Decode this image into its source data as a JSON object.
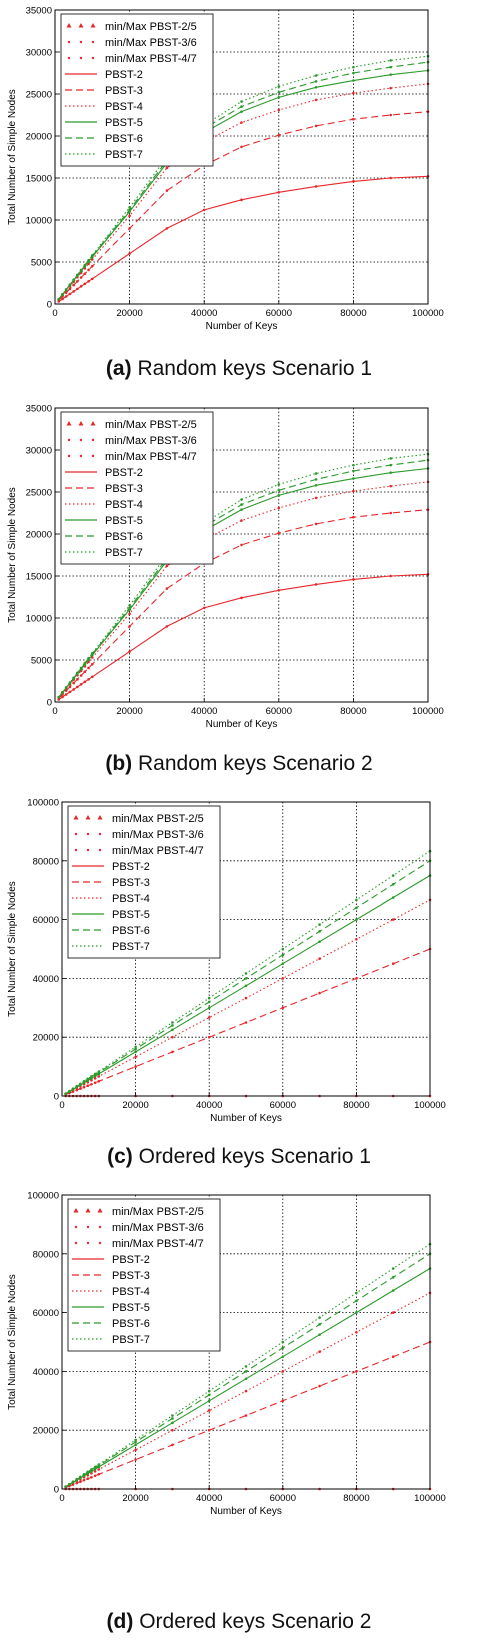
{
  "colors": {
    "pbst_low": "#e8262a",
    "pbst_high": "#2a9a2a",
    "grid": "#000000"
  },
  "chart_data": [
    {
      "type": "line",
      "caption_letter": "(a)",
      "caption_text": "Random keys Scenario 1",
      "xlabel": "Number of Keys",
      "ylabel": "Total Number of Simple Nodes",
      "xlim": [
        0,
        100000
      ],
      "ylim": [
        0,
        35000
      ],
      "xticks": [
        0,
        20000,
        40000,
        60000,
        80000,
        100000
      ],
      "yticks": [
        0,
        5000,
        10000,
        15000,
        20000,
        25000,
        30000,
        35000
      ],
      "grid": true,
      "legend_position": "top-left",
      "x": [
        1000,
        2000,
        3000,
        4000,
        5000,
        6000,
        7000,
        8000,
        9000,
        10000,
        20000,
        30000,
        40000,
        50000,
        60000,
        70000,
        80000,
        90000,
        100000
      ],
      "markers": [
        {
          "name": "min/Max PBST-2/5",
          "shape": "triangle",
          "color": "red"
        },
        {
          "name": "min/Max PBST-3/6",
          "shape": "dot",
          "color": "red"
        },
        {
          "name": "min/Max PBST-4/7",
          "shape": "dot",
          "color": "red"
        }
      ],
      "series": [
        {
          "name": "PBST-2",
          "color": "red",
          "dash": "solid",
          "values": [
            300,
            600,
            900,
            1200,
            1500,
            1800,
            2100,
            2400,
            2700,
            3000,
            6000,
            9000,
            11200,
            12400,
            13300,
            14000,
            14600,
            15000,
            15200
          ]
        },
        {
          "name": "PBST-3",
          "color": "red",
          "dash": "dashed",
          "values": [
            450,
            900,
            1350,
            1800,
            2250,
            2700,
            3150,
            3600,
            4050,
            4500,
            9000,
            13500,
            16500,
            18700,
            20100,
            21200,
            22000,
            22500,
            22900
          ]
        },
        {
          "name": "PBST-4",
          "color": "red",
          "dash": "dotted",
          "values": [
            530,
            1060,
            1590,
            2120,
            2650,
            3180,
            3710,
            4240,
            4770,
            5300,
            10500,
            16200,
            19300,
            21600,
            23100,
            24300,
            25100,
            25700,
            26200
          ]
        },
        {
          "name": "PBST-5",
          "color": "green",
          "dash": "solid",
          "values": [
            560,
            1120,
            1680,
            2240,
            2800,
            3360,
            3920,
            4480,
            5040,
            5600,
            11000,
            16800,
            20400,
            22900,
            24600,
            25800,
            26600,
            27300,
            27800
          ]
        },
        {
          "name": "PBST-6",
          "color": "green",
          "dash": "dashed",
          "values": [
            570,
            1140,
            1710,
            2280,
            2850,
            3420,
            3990,
            4560,
            5130,
            5700,
            11200,
            17100,
            20900,
            23500,
            25200,
            26500,
            27500,
            28200,
            28800
          ]
        },
        {
          "name": "PBST-7",
          "color": "green",
          "dash": "dotted",
          "values": [
            580,
            1160,
            1740,
            2320,
            2900,
            3480,
            4060,
            4640,
            5220,
            5800,
            11500,
            17500,
            21300,
            24100,
            25900,
            27200,
            28200,
            29000,
            29500
          ]
        }
      ]
    },
    {
      "type": "line",
      "caption_letter": "(b)",
      "caption_text": "Random keys Scenario 2",
      "xlabel": "Number of Keys",
      "ylabel": "Total Number of Simple Nodes",
      "xlim": [
        0,
        100000
      ],
      "ylim": [
        0,
        35000
      ],
      "xticks": [
        0,
        20000,
        40000,
        60000,
        80000,
        100000
      ],
      "yticks": [
        0,
        5000,
        10000,
        15000,
        20000,
        25000,
        30000,
        35000
      ],
      "grid": true,
      "legend_position": "top-left",
      "x": [
        1000,
        2000,
        3000,
        4000,
        5000,
        6000,
        7000,
        8000,
        9000,
        10000,
        20000,
        30000,
        40000,
        50000,
        60000,
        70000,
        80000,
        90000,
        100000
      ],
      "markers": [
        {
          "name": "min/Max PBST-2/5",
          "shape": "triangle",
          "color": "red"
        },
        {
          "name": "min/Max PBST-3/6",
          "shape": "dot",
          "color": "red"
        },
        {
          "name": "min/Max PBST-4/7",
          "shape": "dot",
          "color": "red"
        }
      ],
      "series": [
        {
          "name": "PBST-2",
          "color": "red",
          "dash": "solid",
          "values": [
            300,
            600,
            900,
            1200,
            1500,
            1800,
            2100,
            2400,
            2700,
            3000,
            6000,
            9000,
            11200,
            12400,
            13300,
            14000,
            14600,
            15000,
            15200
          ]
        },
        {
          "name": "PBST-3",
          "color": "red",
          "dash": "dashed",
          "values": [
            450,
            900,
            1350,
            1800,
            2250,
            2700,
            3150,
            3600,
            4050,
            4500,
            9000,
            13500,
            16500,
            18700,
            20100,
            21200,
            22000,
            22500,
            22900
          ]
        },
        {
          "name": "PBST-4",
          "color": "red",
          "dash": "dotted",
          "values": [
            530,
            1060,
            1590,
            2120,
            2650,
            3180,
            3710,
            4240,
            4770,
            5300,
            10500,
            16200,
            19300,
            21600,
            23100,
            24300,
            25100,
            25700,
            26200
          ]
        },
        {
          "name": "PBST-5",
          "color": "green",
          "dash": "solid",
          "values": [
            560,
            1120,
            1680,
            2240,
            2800,
            3360,
            3920,
            4480,
            5040,
            5600,
            11000,
            16800,
            20400,
            22900,
            24600,
            25800,
            26600,
            27300,
            27800
          ]
        },
        {
          "name": "PBST-6",
          "color": "green",
          "dash": "dashed",
          "values": [
            570,
            1140,
            1710,
            2280,
            2850,
            3420,
            3990,
            4560,
            5130,
            5700,
            11200,
            17100,
            20900,
            23500,
            25200,
            26500,
            27500,
            28200,
            28800
          ]
        },
        {
          "name": "PBST-7",
          "color": "green",
          "dash": "dotted",
          "values": [
            580,
            1160,
            1740,
            2320,
            2900,
            3480,
            4060,
            4640,
            5220,
            5800,
            11500,
            17500,
            21300,
            24100,
            25900,
            27200,
            28200,
            29000,
            29500
          ]
        }
      ]
    },
    {
      "type": "line",
      "caption_letter": "(c)",
      "caption_text": "Ordered keys Scenario 1",
      "xlabel": "Number of Keys",
      "ylabel": "Total Number of Simple Nodes",
      "xlim": [
        0,
        100000
      ],
      "ylim": [
        0,
        100000
      ],
      "xticks": [
        0,
        20000,
        40000,
        60000,
        80000,
        100000
      ],
      "yticks": [
        0,
        20000,
        40000,
        60000,
        80000,
        100000
      ],
      "grid": true,
      "legend_position": "top-left",
      "x": [
        1000,
        2000,
        3000,
        4000,
        5000,
        6000,
        7000,
        8000,
        9000,
        10000,
        20000,
        30000,
        40000,
        50000,
        60000,
        70000,
        80000,
        90000,
        100000
      ],
      "markers": [
        {
          "name": "min/Max PBST-2/5",
          "shape": "triangle",
          "color": "red"
        },
        {
          "name": "min/Max PBST-3/6",
          "shape": "dot",
          "color": "red"
        },
        {
          "name": "min/Max PBST-4/7",
          "shape": "dot",
          "color": "red"
        }
      ],
      "series": [
        {
          "name": "PBST-2",
          "color": "red",
          "dash": "solid",
          "values": [
            0,
            0,
            0,
            0,
            0,
            0,
            0,
            0,
            0,
            0,
            0,
            0,
            0,
            0,
            0,
            0,
            0,
            0,
            0
          ]
        },
        {
          "name": "PBST-3",
          "color": "red",
          "dash": "dashed",
          "values": [
            500,
            1000,
            1500,
            2000,
            2500,
            3000,
            3500,
            4000,
            4500,
            5000,
            10000,
            15000,
            20000,
            25000,
            30000,
            35000,
            40000,
            45000,
            50000
          ]
        },
        {
          "name": "PBST-4",
          "color": "red",
          "dash": "dotted",
          "values": [
            670,
            1340,
            2000,
            2670,
            3340,
            4000,
            4670,
            5340,
            6000,
            6670,
            13300,
            20000,
            26700,
            33300,
            40000,
            46700,
            53300,
            60000,
            66700
          ]
        },
        {
          "name": "PBST-5",
          "color": "green",
          "dash": "solid",
          "values": [
            750,
            1500,
            2250,
            3000,
            3750,
            4500,
            5250,
            6000,
            6750,
            7500,
            15000,
            22500,
            30000,
            37500,
            45000,
            52500,
            60000,
            67500,
            75000
          ]
        },
        {
          "name": "PBST-6",
          "color": "green",
          "dash": "dashed",
          "values": [
            800,
            1600,
            2400,
            3200,
            4000,
            4800,
            5600,
            6400,
            7200,
            8000,
            16000,
            24000,
            32000,
            40000,
            48000,
            56000,
            64000,
            72000,
            80000
          ]
        },
        {
          "name": "PBST-7",
          "color": "green",
          "dash": "dotted",
          "values": [
            830,
            1660,
            2500,
            3330,
            4160,
            5000,
            5830,
            6660,
            7500,
            8330,
            16700,
            25000,
            33300,
            41700,
            50000,
            58300,
            66700,
            75000,
            83300
          ]
        }
      ]
    },
    {
      "type": "line",
      "caption_letter": "(d)",
      "caption_text": "Ordered keys Scenario 2",
      "xlabel": "Number of Keys",
      "ylabel": "Total Number of Simple Nodes",
      "xlim": [
        0,
        100000
      ],
      "ylim": [
        0,
        100000
      ],
      "xticks": [
        0,
        20000,
        40000,
        60000,
        80000,
        100000
      ],
      "yticks": [
        0,
        20000,
        40000,
        60000,
        80000,
        100000
      ],
      "grid": true,
      "legend_position": "top-left",
      "x": [
        1000,
        2000,
        3000,
        4000,
        5000,
        6000,
        7000,
        8000,
        9000,
        10000,
        20000,
        30000,
        40000,
        50000,
        60000,
        70000,
        80000,
        90000,
        100000
      ],
      "markers": [
        {
          "name": "min/Max PBST-2/5",
          "shape": "triangle",
          "color": "red"
        },
        {
          "name": "min/Max PBST-3/6",
          "shape": "dot",
          "color": "red"
        },
        {
          "name": "min/Max PBST-4/7",
          "shape": "dot",
          "color": "red"
        }
      ],
      "series": [
        {
          "name": "PBST-2",
          "color": "red",
          "dash": "solid",
          "values": [
            0,
            0,
            0,
            0,
            0,
            0,
            0,
            0,
            0,
            0,
            0,
            0,
            0,
            0,
            0,
            0,
            0,
            0,
            0
          ]
        },
        {
          "name": "PBST-3",
          "color": "red",
          "dash": "dashed",
          "values": [
            500,
            1000,
            1500,
            2000,
            2500,
            3000,
            3500,
            4000,
            4500,
            5000,
            10000,
            15000,
            20000,
            25000,
            30000,
            35000,
            40000,
            45000,
            50000
          ]
        },
        {
          "name": "PBST-4",
          "color": "red",
          "dash": "dotted",
          "values": [
            670,
            1340,
            2000,
            2670,
            3340,
            4000,
            4670,
            5340,
            6000,
            6670,
            13300,
            20000,
            26700,
            33300,
            40000,
            46700,
            53300,
            60000,
            66700
          ]
        },
        {
          "name": "PBST-5",
          "color": "green",
          "dash": "solid",
          "values": [
            750,
            1500,
            2250,
            3000,
            3750,
            4500,
            5250,
            6000,
            6750,
            7500,
            15000,
            22500,
            30000,
            37500,
            45000,
            52500,
            60000,
            67500,
            75000
          ]
        },
        {
          "name": "PBST-6",
          "color": "green",
          "dash": "dashed",
          "values": [
            800,
            1600,
            2400,
            3200,
            4000,
            4800,
            5600,
            6400,
            7200,
            8000,
            16000,
            24000,
            32000,
            40000,
            48000,
            56000,
            64000,
            72000,
            80000
          ]
        },
        {
          "name": "PBST-7",
          "color": "green",
          "dash": "dotted",
          "values": [
            830,
            1660,
            2500,
            3330,
            4160,
            5000,
            5830,
            6660,
            7500,
            8330,
            16700,
            25000,
            33300,
            41700,
            50000,
            58300,
            66700,
            75000,
            83300
          ]
        }
      ]
    }
  ]
}
